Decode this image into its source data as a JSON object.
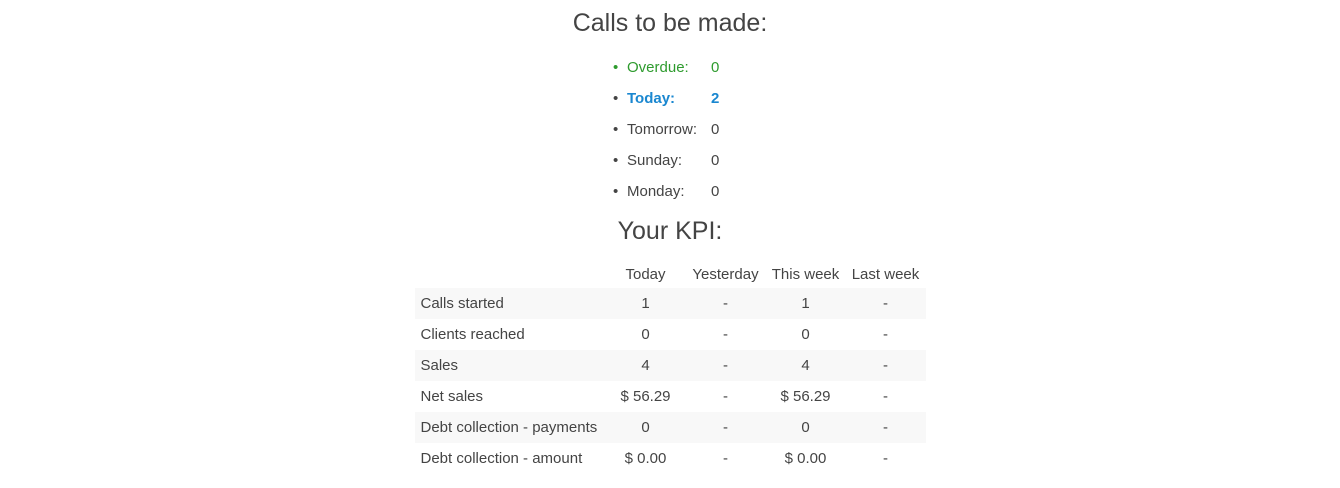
{
  "page": {
    "section1_title": "Calls to be made:",
    "section2_title": "Your KPI:"
  },
  "colors": {
    "default": "#444444",
    "green": "#2e9b2e",
    "blue": "#1a87d0",
    "stripe": "#f8f8f8"
  },
  "calls_list": {
    "items": [
      {
        "label": "Overdue:",
        "value": "0",
        "text_color": "green",
        "bullet_color": "green",
        "bold": false
      },
      {
        "label": "Today:",
        "value": "2",
        "text_color": "blue",
        "bullet_color": "default",
        "bold": true
      },
      {
        "label": "Tomorrow:",
        "value": "0",
        "text_color": "default",
        "bullet_color": "default",
        "bold": false
      },
      {
        "label": "Sunday:",
        "value": "0",
        "text_color": "default",
        "bullet_color": "default",
        "bold": false
      },
      {
        "label": "Monday:",
        "value": "0",
        "text_color": "default",
        "bullet_color": "default",
        "bold": false
      }
    ]
  },
  "kpi_table": {
    "columns": [
      "Today",
      "Yesterday",
      "This week",
      "Last week"
    ],
    "rows": [
      {
        "label": "Calls started",
        "values": [
          "1",
          "-",
          "1",
          "-"
        ]
      },
      {
        "label": "Clients reached",
        "values": [
          "0",
          "-",
          "0",
          "-"
        ]
      },
      {
        "label": "Sales",
        "values": [
          "4",
          "-",
          "4",
          "-"
        ]
      },
      {
        "label": "Net sales",
        "values": [
          "$ 56.29",
          "-",
          "$ 56.29",
          "-"
        ]
      },
      {
        "label": "Debt collection - payments",
        "values": [
          "0",
          "-",
          "0",
          "-"
        ]
      },
      {
        "label": "Debt collection - amount",
        "values": [
          "$ 0.00",
          "-",
          "$ 0.00",
          "-"
        ]
      }
    ]
  }
}
